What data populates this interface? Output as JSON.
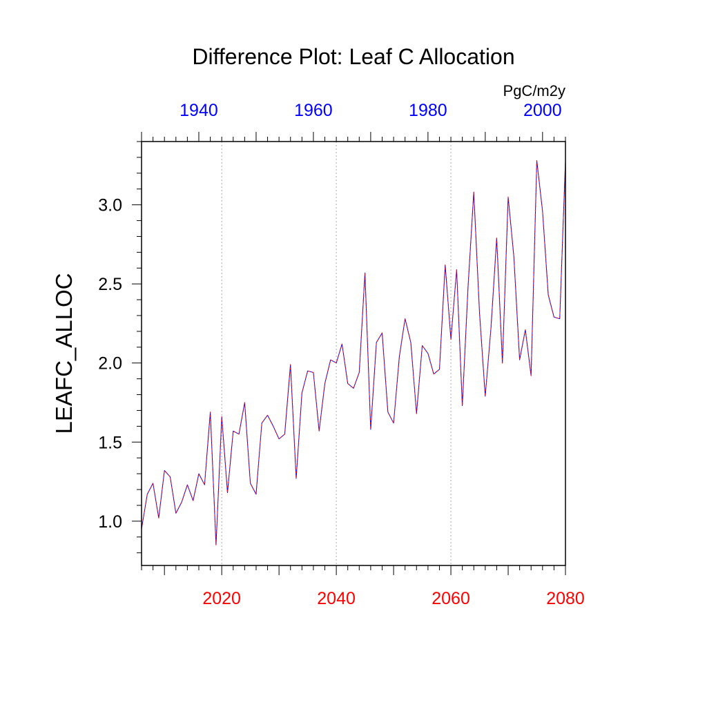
{
  "chart_data": {
    "type": "line",
    "title": "Difference Plot: Leaf C Allocation",
    "ylabel": "LEAFC_ALLOC",
    "units": "PgC/m2y",
    "ylim": [
      0.72,
      3.4
    ],
    "yticks": [
      1.0,
      1.5,
      2.0,
      2.5,
      3.0
    ],
    "ytick_labels": [
      "1.0",
      "1.5",
      "2.0",
      "2.5",
      "3.0"
    ],
    "bottom_axis": {
      "range": [
        2006,
        2080
      ],
      "ticks": [
        2020,
        2040,
        2060,
        2080
      ],
      "tick_labels": [
        "2020",
        "2040",
        "2060",
        "2080"
      ],
      "color": "#ff0000"
    },
    "top_axis": {
      "range": [
        1930,
        2004
      ],
      "ticks": [
        1940,
        1960,
        1980,
        2000
      ],
      "tick_labels": [
        "1940",
        "1960",
        "1980",
        "2000"
      ],
      "color": "#0000ff"
    },
    "gridlines_x": [
      2020,
      2040,
      2060
    ],
    "series": [
      {
        "name": "series-blue",
        "color": "#0000ff",
        "x": [
          2006,
          2007,
          2008,
          2009,
          2010,
          2011,
          2012,
          2013,
          2014,
          2015,
          2016,
          2017,
          2018,
          2019,
          2020,
          2021,
          2022,
          2023,
          2024,
          2025,
          2026,
          2027,
          2028,
          2029,
          2030,
          2031,
          2032,
          2033,
          2034,
          2035,
          2036,
          2037,
          2038,
          2039,
          2040,
          2041,
          2042,
          2043,
          2044,
          2045,
          2046,
          2047,
          2048,
          2049,
          2050,
          2051,
          2052,
          2053,
          2054,
          2055,
          2056,
          2057,
          2058,
          2059,
          2060,
          2061,
          2062,
          2063,
          2064,
          2065,
          2066,
          2067,
          2068,
          2069,
          2070,
          2071,
          2072,
          2073,
          2074,
          2075,
          2076,
          2077,
          2078,
          2079,
          2080
        ],
        "values": [
          0.95,
          1.17,
          1.24,
          1.02,
          1.32,
          1.28,
          1.05,
          1.12,
          1.23,
          1.13,
          1.3,
          1.23,
          1.69,
          0.85,
          1.66,
          1.18,
          1.57,
          1.55,
          1.75,
          1.24,
          1.17,
          1.62,
          1.67,
          1.6,
          1.52,
          1.55,
          1.99,
          1.27,
          1.81,
          1.95,
          1.94,
          1.57,
          1.87,
          2.02,
          2.0,
          2.12,
          1.87,
          1.84,
          1.94,
          2.57,
          1.58,
          2.13,
          2.19,
          1.69,
          1.62,
          2.04,
          2.28,
          2.13,
          1.68,
          2.11,
          2.06,
          1.93,
          1.96,
          2.62,
          2.15,
          2.59,
          1.73,
          2.48,
          3.08,
          2.32,
          1.79,
          2.22,
          2.79,
          2.0,
          3.05,
          2.67,
          2.02,
          2.21,
          1.92,
          3.28,
          2.96,
          2.43,
          2.29,
          2.28,
          3.28
        ]
      },
      {
        "name": "series-red",
        "color": "#ff0000",
        "x": [
          2006,
          2007,
          2008,
          2009,
          2010,
          2011,
          2012,
          2013,
          2014,
          2015,
          2016,
          2017,
          2018,
          2019,
          2020,
          2021,
          2022,
          2023,
          2024,
          2025,
          2026,
          2027,
          2028,
          2029,
          2030,
          2031,
          2032,
          2033,
          2034,
          2035,
          2036,
          2037,
          2038,
          2039,
          2040,
          2041,
          2042,
          2043,
          2044,
          2045,
          2046,
          2047,
          2048,
          2049,
          2050,
          2051,
          2052,
          2053,
          2054,
          2055,
          2056,
          2057,
          2058,
          2059,
          2060,
          2061,
          2062,
          2063,
          2064,
          2065,
          2066,
          2067,
          2068,
          2069,
          2070,
          2071,
          2072,
          2073,
          2074,
          2075,
          2076,
          2077,
          2078,
          2079,
          2080
        ],
        "values": [
          0.95,
          1.17,
          1.24,
          1.02,
          1.32,
          1.28,
          1.05,
          1.12,
          1.23,
          1.13,
          1.3,
          1.23,
          1.69,
          0.85,
          1.66,
          1.18,
          1.57,
          1.55,
          1.75,
          1.24,
          1.17,
          1.62,
          1.67,
          1.6,
          1.52,
          1.55,
          1.99,
          1.27,
          1.81,
          1.95,
          1.94,
          1.57,
          1.87,
          2.02,
          2.0,
          2.12,
          1.87,
          1.84,
          1.94,
          2.57,
          1.58,
          2.13,
          2.19,
          1.69,
          1.62,
          2.04,
          2.28,
          2.13,
          1.68,
          2.11,
          2.06,
          1.93,
          1.96,
          2.62,
          2.15,
          2.59,
          1.73,
          2.48,
          3.08,
          2.32,
          1.79,
          2.22,
          2.79,
          2.0,
          3.05,
          2.67,
          2.02,
          2.21,
          1.92,
          3.28,
          2.96,
          2.43,
          2.29,
          2.28,
          3.28
        ]
      }
    ]
  }
}
